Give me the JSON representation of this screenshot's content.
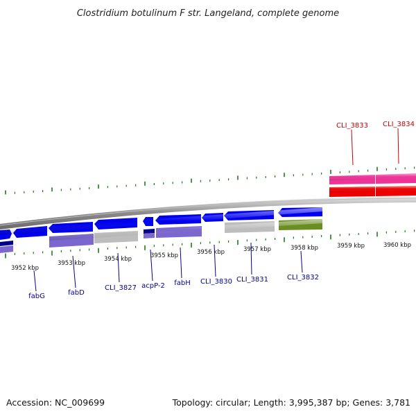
{
  "title": "Clostridium botulinum F str. Langeland, complete genome",
  "footer": {
    "accession": "Accession: NC_009699",
    "summary": "Topology: circular; Length: 3,995,387 bp; Genes: 3,781"
  },
  "colors": {
    "forward_gene": "#0000ee",
    "pseudo_gene": "#7b68cf",
    "hypothetical": "#bdbdbd",
    "rna_gene": "#6b8e23",
    "highlight_pink": "#ee3399",
    "highlight_red": "#ee0000",
    "tick": "#1a7a1a",
    "label_blue": "#00008b",
    "label_red": "#cc0000"
  },
  "ruler": [
    {
      "text": "3952 kbp"
    },
    {
      "text": "3953 kbp"
    },
    {
      "text": "3954 kbp"
    },
    {
      "text": "3955 kbp"
    },
    {
      "text": "3956 kbp"
    },
    {
      "text": "3957 kbp"
    },
    {
      "text": "3958 kbp"
    },
    {
      "text": "3959 kbp"
    },
    {
      "text": "3960 kbp"
    }
  ],
  "gene_labels": [
    {
      "text": "fabG",
      "color": "blue"
    },
    {
      "text": "fabD",
      "color": "blue"
    },
    {
      "text": "CLI_3827",
      "color": "blue"
    },
    {
      "text": "acpP-2",
      "color": "blue"
    },
    {
      "text": "fabH",
      "color": "blue"
    },
    {
      "text": "CLI_3830",
      "color": "blue"
    },
    {
      "text": "CLI_3831",
      "color": "blue"
    },
    {
      "text": "CLI_3832",
      "color": "blue"
    },
    {
      "text": "CLI_3833",
      "color": "red"
    },
    {
      "text": "CLI_3834",
      "color": "red"
    }
  ]
}
